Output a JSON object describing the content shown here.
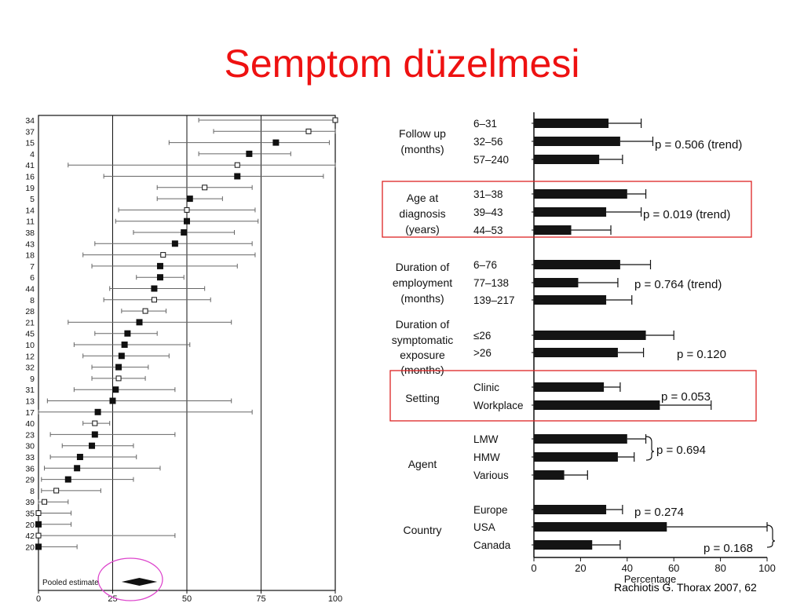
{
  "slide": {
    "title": "Semptom düzelmesi",
    "citation": "Rachiotis G. Thorax 2007, 62"
  },
  "chart_data": [
    {
      "type": "forest",
      "x_ticks": [
        0,
        25,
        50,
        75,
        100
      ],
      "xlim": [
        0,
        100
      ],
      "pooled_label": "Pooled estimate",
      "pooled": {
        "estimate": 34,
        "lower": 28,
        "upper": 40
      },
      "studies": [
        {
          "label": "34",
          "est": 100,
          "lo": 54,
          "hi": 100,
          "filled": false
        },
        {
          "label": "37",
          "est": 91,
          "lo": 59,
          "hi": 100,
          "filled": false
        },
        {
          "label": "15",
          "est": 80,
          "lo": 44,
          "hi": 98,
          "filled": true
        },
        {
          "label": "4",
          "est": 71,
          "lo": 54,
          "hi": 85,
          "filled": true
        },
        {
          "label": "41",
          "est": 67,
          "lo": 10,
          "hi": 100,
          "filled": false
        },
        {
          "label": "16",
          "est": 67,
          "lo": 22,
          "hi": 96,
          "filled": true
        },
        {
          "label": "19",
          "est": 56,
          "lo": 40,
          "hi": 72,
          "filled": false
        },
        {
          "label": "5",
          "est": 51,
          "lo": 40,
          "hi": 62,
          "filled": true
        },
        {
          "label": "14",
          "est": 50,
          "lo": 27,
          "hi": 73,
          "filled": false
        },
        {
          "label": "11",
          "est": 50,
          "lo": 26,
          "hi": 74,
          "filled": true
        },
        {
          "label": "38",
          "est": 49,
          "lo": 32,
          "hi": 66,
          "filled": true
        },
        {
          "label": "43",
          "est": 46,
          "lo": 19,
          "hi": 72,
          "filled": true
        },
        {
          "label": "18",
          "est": 42,
          "lo": 15,
          "hi": 73,
          "filled": false
        },
        {
          "label": "7",
          "est": 41,
          "lo": 18,
          "hi": 67,
          "filled": true
        },
        {
          "label": "6",
          "est": 41,
          "lo": 33,
          "hi": 49,
          "filled": true
        },
        {
          "label": "44",
          "est": 39,
          "lo": 24,
          "hi": 56,
          "filled": true
        },
        {
          "label": "8",
          "est": 39,
          "lo": 22,
          "hi": 58,
          "filled": false
        },
        {
          "label": "28",
          "est": 36,
          "lo": 28,
          "hi": 43,
          "filled": false
        },
        {
          "label": "21",
          "est": 34,
          "lo": 10,
          "hi": 65,
          "filled": true
        },
        {
          "label": "45",
          "est": 30,
          "lo": 19,
          "hi": 40,
          "filled": true
        },
        {
          "label": "10",
          "est": 29,
          "lo": 12,
          "hi": 51,
          "filled": true
        },
        {
          "label": "12",
          "est": 28,
          "lo": 15,
          "hi": 44,
          "filled": true
        },
        {
          "label": "32",
          "est": 27,
          "lo": 18,
          "hi": 37,
          "filled": true
        },
        {
          "label": "9",
          "est": 27,
          "lo": 18,
          "hi": 36,
          "filled": false
        },
        {
          "label": "31",
          "est": 26,
          "lo": 12,
          "hi": 46,
          "filled": true
        },
        {
          "label": "13",
          "est": 25,
          "lo": 3,
          "hi": 65,
          "filled": true
        },
        {
          "label": "17",
          "est": 20,
          "lo": 0,
          "hi": 72,
          "filled": true
        },
        {
          "label": "40",
          "est": 19,
          "lo": 15,
          "hi": 24,
          "filled": false
        },
        {
          "label": "23",
          "est": 19,
          "lo": 4,
          "hi": 46,
          "filled": true
        },
        {
          "label": "30",
          "est": 18,
          "lo": 8,
          "hi": 32,
          "filled": true
        },
        {
          "label": "33",
          "est": 14,
          "lo": 4,
          "hi": 33,
          "filled": true
        },
        {
          "label": "36",
          "est": 13,
          "lo": 2,
          "hi": 41,
          "filled": true
        },
        {
          "label": "29",
          "est": 10,
          "lo": 1,
          "hi": 32,
          "filled": true
        },
        {
          "label": "8",
          "est": 6,
          "lo": 1,
          "hi": 21,
          "filled": false
        },
        {
          "label": "39",
          "est": 2,
          "lo": 0,
          "hi": 10,
          "filled": false
        },
        {
          "label": "35",
          "est": 0,
          "lo": 0,
          "hi": 11,
          "filled": false
        },
        {
          "label": "20",
          "est": 0,
          "lo": 0,
          "hi": 11,
          "filled": true
        },
        {
          "label": "42",
          "est": 0,
          "lo": 0,
          "hi": 46,
          "filled": false
        },
        {
          "label": "20",
          "est": 0,
          "lo": 0,
          "hi": 13,
          "filled": true
        }
      ]
    },
    {
      "type": "bar",
      "orientation": "horizontal",
      "xlabel": "Percentage",
      "xlim": [
        0,
        100
      ],
      "x_ticks": [
        0,
        20,
        40,
        60,
        80,
        100
      ],
      "groups": [
        {
          "label": [
            "Follow up",
            "(months)"
          ],
          "highlight": false,
          "bars": [
            {
              "label": "6–31",
              "value": 32,
              "err": 46
            },
            {
              "label": "32–56",
              "value": 37,
              "err": 51
            },
            {
              "label": "57–240",
              "value": 28,
              "err": 38
            }
          ],
          "pvalue": "p = 0.506 (trend)"
        },
        {
          "label": [
            "Age at",
            "diagnosis",
            "(years)"
          ],
          "highlight": true,
          "bars": [
            {
              "label": "31–38",
              "value": 40,
              "err": 48
            },
            {
              "label": "39–43",
              "value": 31,
              "err": 46
            },
            {
              "label": "44–53",
              "value": 16,
              "err": 33
            }
          ],
          "pvalue": "p = 0.019 (trend)"
        },
        {
          "label": [
            "Duration of",
            "employment",
            "(months)"
          ],
          "highlight": false,
          "bars": [
            {
              "label": "6–76",
              "value": 37,
              "err": 50
            },
            {
              "label": "77–138",
              "value": 19,
              "err": 36
            },
            {
              "label": "139–217",
              "value": 31,
              "err": 42
            }
          ],
          "pvalue": "p = 0.764 (trend)"
        },
        {
          "label": [
            "Duration of",
            "symptomatic",
            "exposure",
            "(months)"
          ],
          "highlight": false,
          "bars": [
            {
              "label": "≤26",
              "value": 48,
              "err": 60
            },
            {
              "label": ">26",
              "value": 36,
              "err": 47
            }
          ],
          "pvalue": "p = 0.120"
        },
        {
          "label": [
            "Setting"
          ],
          "highlight": true,
          "bars": [
            {
              "label": "Clinic",
              "value": 30,
              "err": 37
            },
            {
              "label": "Workplace",
              "value": 54,
              "err": 76
            }
          ],
          "pvalue": "p = 0.053"
        },
        {
          "label": [
            "Agent"
          ],
          "highlight": false,
          "bars": [
            {
              "label": "LMW",
              "value": 40,
              "err": 48
            },
            {
              "label": "HMW",
              "value": 36,
              "err": 43
            },
            {
              "label": "Various",
              "value": 13,
              "err": 23
            }
          ],
          "pvalue": "p = 0.694"
        },
        {
          "label": [
            "Country"
          ],
          "highlight": false,
          "bars": [
            {
              "label": "Europe",
              "value": 31,
              "err": 38
            },
            {
              "label": "USA",
              "value": 57,
              "err": 100
            },
            {
              "label": "Canada",
              "value": 25,
              "err": 37
            }
          ],
          "pvalues": [
            "p = 0.274",
            "p = 0.168"
          ]
        }
      ]
    }
  ],
  "colors": {
    "title": "#ee1111",
    "highlight_box": "#dd2222",
    "pooled_circle": "#dd44cc",
    "ink": "#111111"
  }
}
